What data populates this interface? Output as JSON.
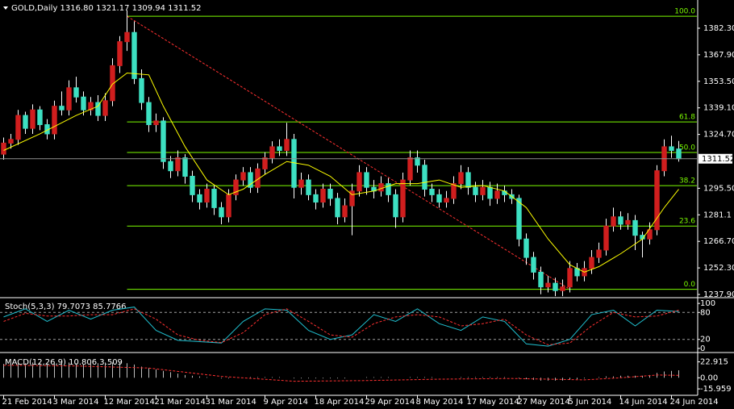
{
  "chart_data": [
    {
      "type": "candlestick",
      "title": "GOLD,Daily  1316.80 1321.17 1309.94 1311.52",
      "up_color": "#d01e1e",
      "down_color": "#3de0c2",
      "wick_color": "#ffffff",
      "xlim": [
        -0.5,
        95.5
      ],
      "ylim": [
        1236.6,
        1397.6
      ],
      "yticks": [
        {
          "value": 1382.3,
          "label": "1382.30"
        },
        {
          "value": 1367.9,
          "label": "1367.90"
        },
        {
          "value": 1353.5,
          "label": "1353.50"
        },
        {
          "value": 1339.1,
          "label": "1339.10"
        },
        {
          "value": 1324.7,
          "label": "1324.70"
        },
        {
          "value": 1295.5,
          "label": "1295.50"
        },
        1281.1,
        {
          "value": 1266.7,
          "label": "1266.70"
        },
        {
          "value": 1252.3,
          "label": "1252.30"
        },
        {
          "value": 1237.9,
          "label": "1237.90"
        }
      ],
      "xticks": [
        {
          "value": 0,
          "label": "21 Feb 2014"
        },
        {
          "value": 7,
          "label": "3 Mar 2014"
        },
        {
          "value": 14,
          "label": "12 Mar 2014"
        },
        {
          "value": 21,
          "label": "21 Mar 2014"
        },
        {
          "value": 28,
          "label": "31 Mar 2014"
        },
        {
          "value": 36,
          "label": "9 Apr 2014"
        },
        {
          "value": 43,
          "label": "18 Apr 2014"
        },
        {
          "value": 50,
          "label": "29 Apr 2014"
        },
        {
          "value": 57,
          "label": "8 May 2014"
        },
        {
          "value": 64,
          "label": "17 May 2014"
        },
        {
          "value": 71,
          "label": "27 May 2014"
        },
        {
          "value": 78,
          "label": "5 Jun 2014"
        },
        {
          "value": 85,
          "label": "14 Jun 2014"
        },
        {
          "value": 92,
          "label": "24 Jun 2014"
        }
      ],
      "candles": [
        [
          1314,
          1323,
          1311,
          1320
        ],
        [
          1320,
          1325,
          1317,
          1322
        ],
        [
          1322,
          1338,
          1319,
          1335
        ],
        [
          1335,
          1337,
          1325,
          1328
        ],
        [
          1328,
          1341,
          1325,
          1338
        ],
        [
          1338,
          1340,
          1327,
          1330
        ],
        [
          1330,
          1333,
          1322,
          1325
        ],
        [
          1325,
          1343,
          1322,
          1340
        ],
        [
          1340,
          1348,
          1335,
          1338
        ],
        [
          1338,
          1354,
          1335,
          1350
        ],
        [
          1350,
          1356,
          1342,
          1345
        ],
        [
          1345,
          1348,
          1335,
          1338
        ],
        [
          1338,
          1345,
          1335,
          1342
        ],
        [
          1342,
          1346,
          1332,
          1335
        ],
        [
          1335,
          1347,
          1332,
          1343
        ],
        [
          1343,
          1366,
          1340,
          1362
        ],
        [
          1362,
          1378,
          1358,
          1375
        ],
        [
          1375,
          1392,
          1370,
          1380
        ],
        [
          1380,
          1386,
          1352,
          1355
        ],
        [
          1355,
          1360,
          1338,
          1342
        ],
        [
          1342,
          1345,
          1326,
          1330
        ],
        [
          1330,
          1336,
          1326,
          1332
        ],
        [
          1332,
          1334,
          1306,
          1310
        ],
        [
          1310,
          1313,
          1301,
          1305
        ],
        [
          1305,
          1316,
          1302,
          1312
        ],
        [
          1312,
          1314,
          1298,
          1302
        ],
        [
          1302,
          1305,
          1288,
          1292
        ],
        [
          1292,
          1295,
          1284,
          1288
        ],
        [
          1288,
          1298,
          1285,
          1295
        ],
        [
          1295,
          1297,
          1281,
          1285
        ],
        [
          1285,
          1288,
          1276,
          1280
        ],
        [
          1280,
          1295,
          1277,
          1292
        ],
        [
          1292,
          1303,
          1289,
          1300
        ],
        [
          1300,
          1307,
          1297,
          1304
        ],
        [
          1304,
          1307,
          1293,
          1296
        ],
        [
          1296,
          1309,
          1293,
          1306
        ],
        [
          1306,
          1315,
          1303,
          1312
        ],
        [
          1312,
          1321,
          1309,
          1318
        ],
        [
          1318,
          1322,
          1313,
          1316
        ],
        [
          1316,
          1331,
          1313,
          1322
        ],
        [
          1322,
          1325,
          1290,
          1296
        ],
        [
          1296,
          1304,
          1292,
          1300
        ],
        [
          1300,
          1303,
          1289,
          1292
        ],
        [
          1292,
          1295,
          1284,
          1288
        ],
        [
          1288,
          1298,
          1285,
          1295
        ],
        [
          1295,
          1298,
          1286,
          1290
        ],
        [
          1290,
          1293,
          1276,
          1280
        ],
        [
          1280,
          1290,
          1277,
          1286
        ],
        [
          1286,
          1298,
          1270,
          1294
        ],
        [
          1294,
          1308,
          1291,
          1304
        ],
        [
          1304,
          1307,
          1292,
          1296
        ],
        [
          1296,
          1300,
          1290,
          1294
        ],
        [
          1294,
          1302,
          1291,
          1298
        ],
        [
          1298,
          1301,
          1288,
          1292
        ],
        [
          1292,
          1295,
          1274,
          1280
        ],
        [
          1280,
          1304,
          1277,
          1300
        ],
        [
          1300,
          1316,
          1297,
          1312
        ],
        [
          1312,
          1316,
          1304,
          1308
        ],
        [
          1308,
          1311,
          1291,
          1295
        ],
        [
          1295,
          1298,
          1288,
          1292
        ],
        [
          1292,
          1295,
          1285,
          1288
        ],
        [
          1288,
          1294,
          1285,
          1290
        ],
        [
          1290,
          1302,
          1287,
          1298
        ],
        [
          1298,
          1308,
          1295,
          1304
        ],
        [
          1304,
          1307,
          1292,
          1296
        ],
        [
          1296,
          1299,
          1288,
          1292
        ],
        [
          1292,
          1300,
          1289,
          1296
        ],
        [
          1296,
          1299,
          1286,
          1290
        ],
        [
          1290,
          1298,
          1287,
          1294
        ],
        [
          1294,
          1297,
          1288,
          1292
        ],
        [
          1292,
          1295,
          1287,
          1290
        ],
        [
          1290,
          1292,
          1264,
          1268
        ],
        [
          1268,
          1271,
          1254,
          1258
        ],
        [
          1258,
          1261,
          1246,
          1250
        ],
        [
          1250,
          1253,
          1238,
          1242
        ],
        [
          1242,
          1248,
          1239,
          1244
        ],
        [
          1244,
          1247,
          1237,
          1240
        ],
        [
          1240,
          1246,
          1237,
          1242
        ],
        [
          1242,
          1256,
          1239,
          1252
        ],
        [
          1252,
          1255,
          1245,
          1248
        ],
        [
          1248,
          1256,
          1245,
          1252
        ],
        [
          1252,
          1262,
          1249,
          1258
        ],
        [
          1258,
          1266,
          1255,
          1262
        ],
        [
          1262,
          1279,
          1259,
          1275
        ],
        [
          1275,
          1285,
          1272,
          1280
        ],
        [
          1280,
          1283,
          1273,
          1276
        ],
        [
          1276,
          1282,
          1273,
          1278
        ],
        [
          1278,
          1281,
          1262,
          1270
        ],
        [
          1270,
          1272,
          1258,
          1268
        ],
        [
          1268,
          1277,
          1265,
          1273
        ],
        [
          1273,
          1308,
          1270,
          1305
        ],
        [
          1305,
          1322,
          1302,
          1318
        ],
        [
          1318,
          1324,
          1312,
          1316
        ],
        [
          1316.8,
          1321.17,
          1309.94,
          1311.52
        ]
      ],
      "ma": {
        "color": "#ffff00",
        "x": [
          0,
          5,
          10,
          13,
          15,
          17,
          20,
          22,
          25,
          28,
          31,
          33,
          36,
          39,
          42,
          45,
          48,
          51,
          54,
          57,
          60,
          63,
          66,
          69,
          72,
          75,
          78,
          80,
          82,
          85,
          88,
          91,
          93
        ],
        "values": [
          1316,
          1325,
          1335,
          1340,
          1352,
          1358,
          1357,
          1340,
          1318,
          1300,
          1292,
          1295,
          1303,
          1310,
          1308,
          1302,
          1292,
          1294,
          1298,
          1298,
          1300,
          1296,
          1297,
          1294,
          1285,
          1268,
          1254,
          1250,
          1253,
          1260,
          1268,
          1285,
          1295
        ]
      },
      "trendline": {
        "color": "#ff3030",
        "x": [
          17,
          78
        ],
        "values": [
          1388.8,
          1240.7
        ]
      },
      "fib": {
        "color": "#7cfc00",
        "start": 17,
        "levels": [
          {
            "label": "100.0",
            "value": 1388.8
          },
          {
            "label": "61.8",
            "value": 1331.5
          },
          {
            "label": "50.0",
            "value": 1314.9
          },
          {
            "label": "38.2",
            "value": 1296.9
          },
          {
            "label": "23.6",
            "value": 1275.0
          },
          {
            "label": "0.0",
            "value": 1240.7
          }
        ]
      }
    },
    {
      "type": "line",
      "title": "Stoch(5,3,3) 79.7073 85.7766",
      "xlim": [
        -0.5,
        95.5
      ],
      "ylim": [
        -7.4,
        111
      ],
      "yticks": [
        0,
        20,
        80,
        100
      ],
      "levels": [
        20,
        80
      ],
      "level_color": "#a0a0a0",
      "series": [
        {
          "color": "#20c0d0",
          "dashed": false,
          "x": [
            0,
            3,
            6,
            9,
            12,
            15,
            18,
            21,
            24,
            27,
            30,
            33,
            36,
            39,
            42,
            45,
            48,
            51,
            54,
            57,
            60,
            63,
            66,
            69,
            72,
            75,
            78,
            81,
            84,
            87,
            90,
            93
          ],
          "values": [
            70,
            88,
            60,
            85,
            65,
            85,
            92,
            40,
            18,
            15,
            12,
            60,
            88,
            85,
            40,
            20,
            30,
            75,
            60,
            88,
            55,
            40,
            70,
            60,
            10,
            5,
            20,
            75,
            85,
            50,
            85,
            82
          ]
        },
        {
          "color": "#ff3030",
          "dashed": true,
          "x": [
            0,
            3,
            6,
            9,
            12,
            15,
            18,
            21,
            24,
            27,
            30,
            33,
            36,
            39,
            42,
            45,
            48,
            51,
            54,
            57,
            60,
            63,
            66,
            69,
            72,
            75,
            78,
            81,
            84,
            87,
            90,
            93
          ],
          "values": [
            60,
            78,
            72,
            72,
            75,
            75,
            88,
            65,
            30,
            18,
            13,
            35,
            75,
            88,
            60,
            30,
            25,
            55,
            70,
            75,
            70,
            50,
            55,
            65,
            30,
            8,
            12,
            50,
            80,
            70,
            72,
            85
          ]
        }
      ]
    },
    {
      "type": "macd",
      "title": "MACD(12,26,9) 10.806 3.509",
      "xlim": [
        -0.5,
        95.5
      ],
      "ylim": [
        -24,
        34
      ],
      "yticks": [
        22.915,
        {
          "value": 0,
          "label": "0.00"
        },
        -15.959
      ],
      "histogram": {
        "color": "#c0c0c0",
        "values": [
          20,
          20,
          21,
          21,
          22,
          22,
          21,
          21,
          21,
          22,
          21,
          20,
          20,
          21,
          22,
          22,
          22,
          21,
          19,
          16,
          14,
          12,
          10,
          8,
          6,
          4,
          3,
          2,
          1,
          0,
          -1,
          -1,
          0,
          0,
          1,
          1,
          1,
          1,
          1,
          0,
          -1,
          -1,
          -1,
          -1,
          -1,
          -1,
          -1,
          -1,
          0,
          0,
          1,
          1,
          1,
          1,
          0,
          0,
          1,
          1,
          1,
          1,
          0,
          0,
          0,
          1,
          1,
          1,
          1,
          1,
          1,
          1,
          0,
          -1,
          -2,
          -3,
          -4,
          -4,
          -4,
          -4,
          -3,
          -2,
          -1,
          0,
          1,
          2,
          2,
          3,
          3,
          3,
          3,
          4,
          7,
          9,
          10,
          10.806
        ]
      },
      "signal": {
        "color": "#ff3030",
        "x": [
          0,
          10,
          20,
          30,
          40,
          50,
          60,
          70,
          80,
          85,
          90,
          93
        ],
        "values": [
          18,
          17,
          14,
          2,
          -5,
          -4,
          -2,
          -1,
          -3,
          0,
          4,
          3.509
        ]
      }
    }
  ]
}
